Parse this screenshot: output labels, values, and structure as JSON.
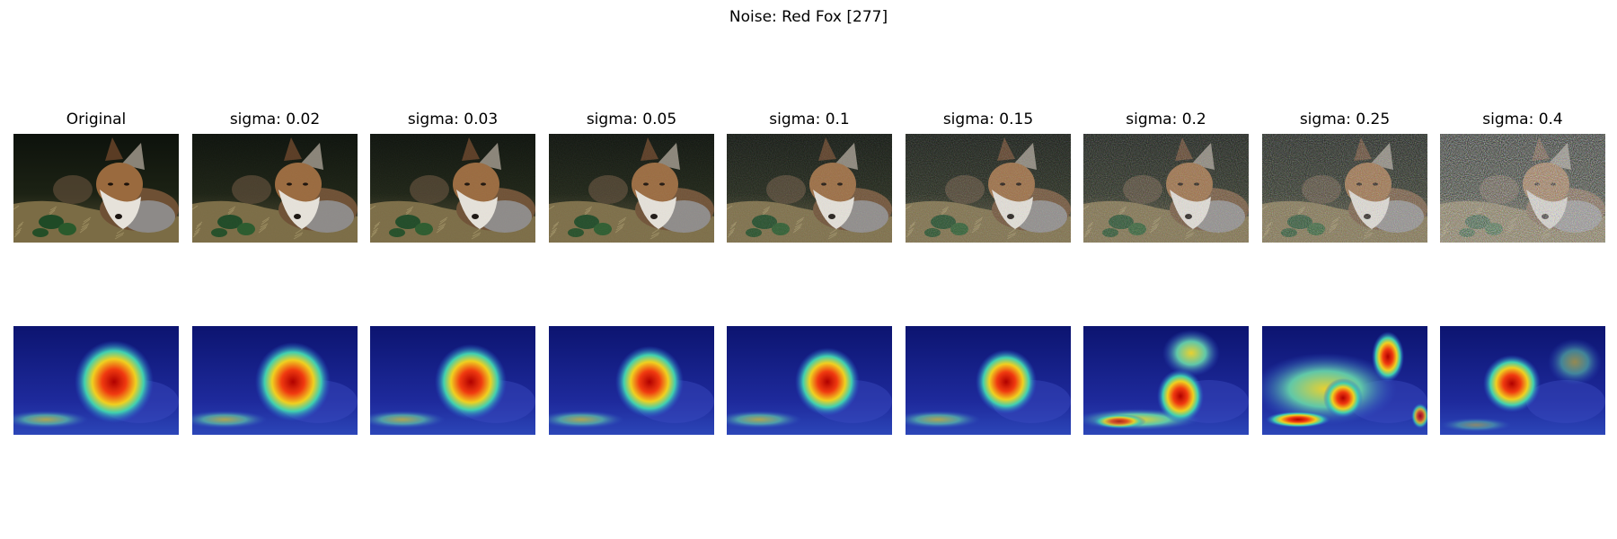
{
  "figure": {
    "title": "Noise: Red Fox [277]",
    "columns": [
      {
        "label": "Original",
        "sigma": 0
      },
      {
        "label": "sigma: 0.02",
        "sigma": 0.02
      },
      {
        "label": "sigma: 0.03",
        "sigma": 0.03
      },
      {
        "label": "sigma: 0.05",
        "sigma": 0.05
      },
      {
        "label": "sigma: 0.1",
        "sigma": 0.1
      },
      {
        "label": "sigma: 0.15",
        "sigma": 0.15
      },
      {
        "label": "sigma: 0.2",
        "sigma": 0.2
      },
      {
        "label": "sigma: 0.25",
        "sigma": 0.25
      },
      {
        "label": "sigma: 0.4",
        "sigma": 0.4
      }
    ],
    "rows": [
      "noisy-image",
      "saliency-heatmap"
    ]
  }
}
